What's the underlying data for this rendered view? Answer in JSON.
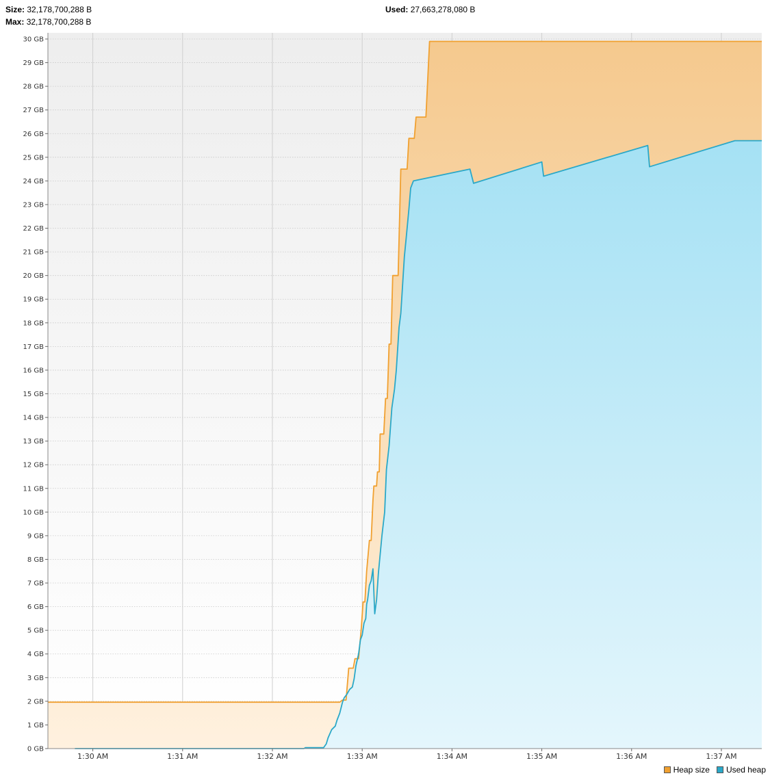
{
  "header": {
    "size_label": "Size:",
    "size_value": "32,178,700,288 B",
    "max_label": "Max:",
    "max_value": "32,178,700,288 B",
    "used_label": "Used:",
    "used_value": "27,663,278,080 B"
  },
  "colors": {
    "heap_size_line": "#f0a030",
    "used_heap_line": "#2aa8c8"
  },
  "chart_data": {
    "type": "area",
    "y_unit": "GB",
    "ylim": [
      0,
      30
    ],
    "y_ticks": [
      "0 GB",
      "1 GB",
      "2 GB",
      "3 GB",
      "4 GB",
      "5 GB",
      "6 GB",
      "7 GB",
      "8 GB",
      "9 GB",
      "10 GB",
      "11 GB",
      "12 GB",
      "13 GB",
      "14 GB",
      "15 GB",
      "16 GB",
      "17 GB",
      "18 GB",
      "19 GB",
      "20 GB",
      "21 GB",
      "22 GB",
      "23 GB",
      "24 GB",
      "25 GB",
      "26 GB",
      "27 GB",
      "28 GB",
      "29 GB",
      "30 GB"
    ],
    "x_unit": "minutes after 1:30 AM",
    "xlim": [
      -0.5,
      7.45
    ],
    "x_ticks": [
      {
        "label": "1:30 AM",
        "t": 0
      },
      {
        "label": "1:31 AM",
        "t": 1
      },
      {
        "label": "1:32 AM",
        "t": 2
      },
      {
        "label": "1:33 AM",
        "t": 3
      },
      {
        "label": "1:34 AM",
        "t": 4
      },
      {
        "label": "1:35 AM",
        "t": 5
      },
      {
        "label": "1:36 AM",
        "t": 6
      },
      {
        "label": "1:37 AM",
        "t": 7
      }
    ],
    "grid": true,
    "legend_position": "bottom-right",
    "series": [
      {
        "name": "Heap size",
        "points": [
          [
            -0.5,
            1.96
          ],
          [
            2.75,
            1.96
          ],
          [
            2.78,
            2.05
          ],
          [
            2.82,
            2.05
          ],
          [
            2.85,
            3.4
          ],
          [
            2.9,
            3.4
          ],
          [
            2.92,
            3.8
          ],
          [
            2.96,
            3.8
          ],
          [
            2.99,
            5.1
          ],
          [
            3.01,
            6.2
          ],
          [
            3.03,
            6.2
          ],
          [
            3.05,
            7.5
          ],
          [
            3.08,
            8.8
          ],
          [
            3.1,
            8.8
          ],
          [
            3.12,
            10.5
          ],
          [
            3.13,
            11.1
          ],
          [
            3.16,
            11.1
          ],
          [
            3.17,
            11.7
          ],
          [
            3.19,
            11.7
          ],
          [
            3.2,
            13.3
          ],
          [
            3.24,
            13.3
          ],
          [
            3.26,
            14.8
          ],
          [
            3.28,
            14.8
          ],
          [
            3.3,
            17.1
          ],
          [
            3.32,
            17.1
          ],
          [
            3.34,
            20.0
          ],
          [
            3.4,
            20.0
          ],
          [
            3.43,
            24.5
          ],
          [
            3.5,
            24.5
          ],
          [
            3.52,
            25.8
          ],
          [
            3.58,
            25.8
          ],
          [
            3.6,
            26.7
          ],
          [
            3.71,
            26.7
          ],
          [
            3.75,
            29.9
          ],
          [
            7.45,
            29.9
          ]
        ]
      },
      {
        "name": "Used heap",
        "points": [
          [
            -0.2,
            0
          ],
          [
            2.35,
            0
          ],
          [
            2.37,
            0.04
          ],
          [
            2.57,
            0.04
          ],
          [
            2.6,
            0.2
          ],
          [
            2.62,
            0.45
          ],
          [
            2.66,
            0.8
          ],
          [
            2.7,
            0.95
          ],
          [
            2.72,
            1.2
          ],
          [
            2.75,
            1.5
          ],
          [
            2.78,
            1.95
          ],
          [
            2.8,
            2.15
          ],
          [
            2.83,
            2.3
          ],
          [
            2.86,
            2.5
          ],
          [
            2.89,
            2.6
          ],
          [
            2.91,
            2.95
          ],
          [
            2.93,
            3.5
          ],
          [
            2.96,
            4.0
          ],
          [
            2.98,
            4.6
          ],
          [
            3.0,
            4.8
          ],
          [
            3.02,
            5.3
          ],
          [
            3.04,
            5.5
          ],
          [
            3.05,
            6.1
          ],
          [
            3.06,
            6.3
          ],
          [
            3.08,
            6.9
          ],
          [
            3.1,
            7.1
          ],
          [
            3.12,
            7.6
          ],
          [
            3.14,
            5.7
          ],
          [
            3.16,
            6.3
          ],
          [
            3.18,
            7.4
          ],
          [
            3.2,
            8.2
          ],
          [
            3.22,
            9.0
          ],
          [
            3.25,
            10.0
          ],
          [
            3.27,
            11.8
          ],
          [
            3.3,
            12.8
          ],
          [
            3.33,
            14.4
          ],
          [
            3.36,
            15.2
          ],
          [
            3.38,
            16.0
          ],
          [
            3.41,
            17.8
          ],
          [
            3.43,
            18.4
          ],
          [
            3.45,
            19.6
          ],
          [
            3.47,
            20.8
          ],
          [
            3.49,
            21.6
          ],
          [
            3.52,
            22.8
          ],
          [
            3.54,
            23.7
          ],
          [
            3.57,
            24.0
          ],
          [
            4.2,
            24.5
          ],
          [
            4.24,
            23.9
          ],
          [
            5.0,
            24.8
          ],
          [
            5.02,
            24.2
          ],
          [
            6.18,
            25.5
          ],
          [
            6.2,
            24.6
          ],
          [
            7.15,
            25.7
          ],
          [
            7.45,
            25.7
          ]
        ]
      }
    ]
  },
  "legend": {
    "heap_size": "Heap size",
    "used_heap": "Used heap"
  }
}
